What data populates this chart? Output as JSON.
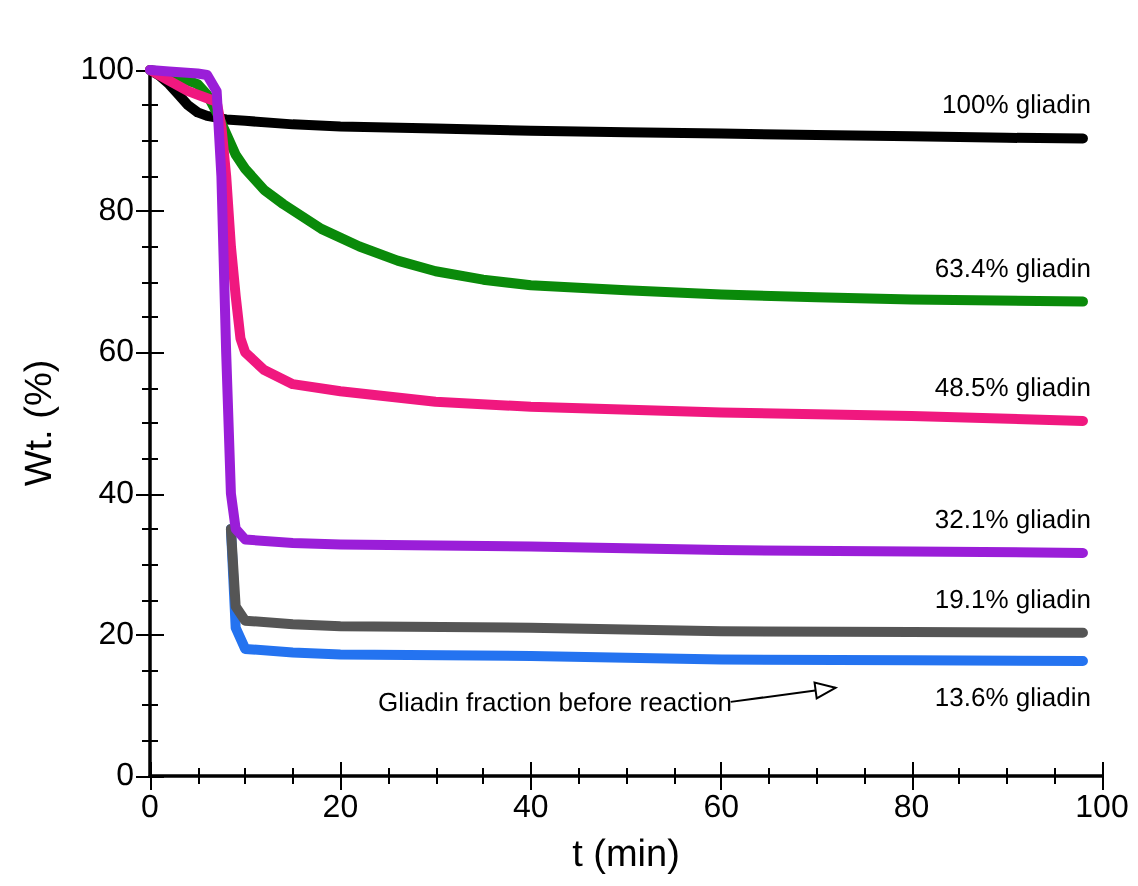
{
  "chart_data": {
    "type": "line",
    "xlabel": "t (min)",
    "ylabel": "Wt. (%)",
    "xlim": [
      0,
      100
    ],
    "xticks": [
      0,
      20,
      40,
      60,
      80,
      100
    ],
    "ylim": [
      0,
      100
    ],
    "yticks": [
      0,
      20,
      40,
      60,
      80,
      100
    ],
    "grid": false,
    "legend": false,
    "marker": "none",
    "line_style": "solid",
    "annotations": [
      "Gliadin fraction before reaction"
    ],
    "series": [
      {
        "name": "100% gliadin",
        "color": "#000000",
        "x": [
          0,
          1,
          2,
          3,
          4,
          5,
          6,
          8,
          10,
          15,
          20,
          30,
          40,
          50,
          60,
          70,
          80,
          90,
          98
        ],
        "values": [
          100,
          99.2,
          98,
          96.5,
          95,
          94,
          93.5,
          93,
          92.8,
          92.3,
          92,
          91.7,
          91.4,
          91.2,
          91,
          90.8,
          90.6,
          90.4,
          90.3
        ]
      },
      {
        "name": "63.4% gliadin",
        "color": "#0a8a0a",
        "x": [
          0,
          2,
          4,
          5,
          6,
          7,
          8,
          9,
          10,
          12,
          14,
          18,
          22,
          26,
          30,
          35,
          40,
          50,
          60,
          70,
          80,
          98
        ],
        "values": [
          100,
          99.5,
          98.5,
          98,
          96.5,
          94,
          91,
          88,
          86,
          83,
          81,
          77.5,
          75,
          73,
          71.5,
          70.3,
          69.5,
          68.8,
          68.2,
          67.8,
          67.5,
          67.2
        ]
      },
      {
        "name": "48.5% gliadin",
        "color": "#f0187f",
        "x": [
          0,
          2,
          4,
          6,
          7,
          7.5,
          8,
          8.5,
          9,
          9.5,
          10,
          12,
          15,
          20,
          30,
          40,
          60,
          80,
          98
        ],
        "values": [
          100,
          98.5,
          97,
          96,
          95.5,
          92,
          85,
          75,
          68,
          62,
          60,
          57.5,
          55.5,
          54.5,
          53,
          52.3,
          51.5,
          51,
          50.3
        ]
      },
      {
        "name": "32.1% gliadin",
        "color": "#9a1ed8",
        "x": [
          0,
          2,
          5,
          6,
          7,
          7.5,
          8,
          8.5,
          9,
          10,
          15,
          20,
          40,
          60,
          80,
          98
        ],
        "values": [
          100,
          99.8,
          99.5,
          99.3,
          97,
          85,
          60,
          40,
          35,
          33.5,
          33,
          32.8,
          32.5,
          32,
          31.8,
          31.6
        ]
      },
      {
        "name": "19.1% gliadin",
        "color": "#555555",
        "x": [
          8.5,
          9,
          10,
          15,
          20,
          40,
          60,
          80,
          98
        ],
        "values": [
          35,
          24,
          22,
          21.5,
          21.2,
          21,
          20.5,
          20.4,
          20.3
        ]
      },
      {
        "name": "13.6% gliadin",
        "color": "#2473f0",
        "x": [
          8.5,
          9,
          10,
          15,
          20,
          40,
          60,
          80,
          98
        ],
        "values": [
          35,
          21,
          18,
          17.5,
          17.2,
          17,
          16.5,
          16.4,
          16.3
        ]
      }
    ]
  }
}
